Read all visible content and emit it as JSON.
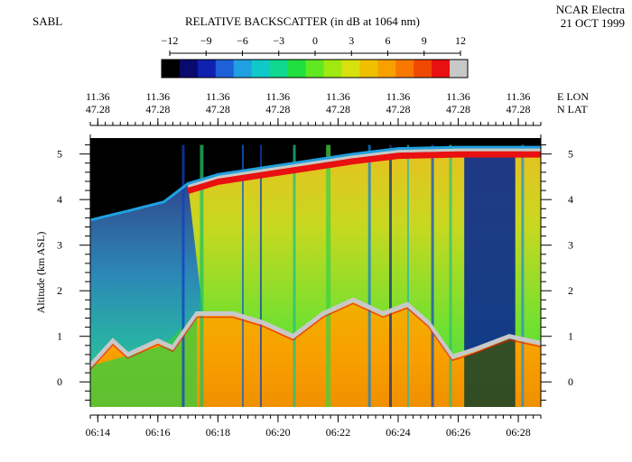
{
  "header": {
    "instrument": "SABL",
    "colorbar_title": "RELATIVE BACKSCATTER (in dB at 1064 nm)",
    "platform": "NCAR Electra",
    "date": "21 OCT 1999"
  },
  "colorbar": {
    "ticks": [
      "−12",
      "−9",
      "−6",
      "−3",
      "0",
      "3",
      "6",
      "9",
      "12"
    ],
    "values": [
      -12,
      -9,
      -6,
      -3,
      0,
      3,
      6,
      9,
      12
    ],
    "colors": [
      "#000000",
      "#0a0a6e",
      "#1020b0",
      "#1e60d8",
      "#20a0e0",
      "#10c8c8",
      "#10d890",
      "#20e040",
      "#60e820",
      "#a0e810",
      "#d8e010",
      "#f0c000",
      "#f8a000",
      "#f87800",
      "#f04800",
      "#e81010",
      "#c8c8c8"
    ]
  },
  "chart_data": {
    "type": "heatmap",
    "title": "RELATIVE BACKSCATTER (in dB at 1064 nm)",
    "xlabel": "",
    "ylabel": "Altitude (km ASL)",
    "x_ticks": [
      "06:14",
      "06:16",
      "06:18",
      "06:20",
      "06:22",
      "06:24",
      "06:26",
      "06:28"
    ],
    "x_tick_minutes": [
      14,
      16,
      18,
      20,
      22,
      24,
      26,
      28
    ],
    "xlim_minutes": [
      13.75,
      28.75
    ],
    "y_ticks": [
      "0",
      "1",
      "2",
      "3",
      "4",
      "5"
    ],
    "y_tick_values": [
      0,
      1,
      2,
      3,
      4,
      5
    ],
    "ylim": [
      -0.55,
      5.35
    ],
    "lon_ticks": [
      "11.36",
      "11.36",
      "11.36",
      "11.36",
      "11.36",
      "11.36",
      "11.36",
      "11.36"
    ],
    "lat_ticks": [
      "47.28",
      "47.28",
      "47.28",
      "47.28",
      "47.28",
      "47.28",
      "47.28",
      "47.28"
    ],
    "lon_label": "E LON",
    "lat_label": "N LAT",
    "aircraft_altitude_km": [
      {
        "minute": 13.75,
        "alt": 3.55
      },
      {
        "minute": 15.0,
        "alt": 3.75
      },
      {
        "minute": 16.2,
        "alt": 3.95
      },
      {
        "minute": 17.0,
        "alt": 4.35
      },
      {
        "minute": 18.0,
        "alt": 4.55
      },
      {
        "minute": 19.5,
        "alt": 4.7
      },
      {
        "minute": 21.0,
        "alt": 4.85
      },
      {
        "minute": 22.5,
        "alt": 5.0
      },
      {
        "minute": 24.0,
        "alt": 5.12
      },
      {
        "minute": 26.0,
        "alt": 5.15
      },
      {
        "minute": 28.75,
        "alt": 5.15
      }
    ],
    "boundary_layer_top_km": [
      {
        "minute": 13.75,
        "alt": 0.35
      },
      {
        "minute": 14.5,
        "alt": 0.9
      },
      {
        "minute": 15.0,
        "alt": 0.6
      },
      {
        "minute": 16.0,
        "alt": 0.9
      },
      {
        "minute": 16.5,
        "alt": 0.75
      },
      {
        "minute": 17.3,
        "alt": 1.5
      },
      {
        "minute": 18.5,
        "alt": 1.5
      },
      {
        "minute": 19.5,
        "alt": 1.3
      },
      {
        "minute": 20.5,
        "alt": 1.0
      },
      {
        "minute": 21.5,
        "alt": 1.5
      },
      {
        "minute": 22.5,
        "alt": 1.8
      },
      {
        "minute": 23.5,
        "alt": 1.5
      },
      {
        "minute": 24.3,
        "alt": 1.7
      },
      {
        "minute": 25.0,
        "alt": 1.3
      },
      {
        "minute": 25.8,
        "alt": 0.55
      },
      {
        "minute": 26.5,
        "alt": 0.7
      },
      {
        "minute": 27.7,
        "alt": 1.0
      },
      {
        "minute": 28.75,
        "alt": 0.85
      }
    ]
  }
}
